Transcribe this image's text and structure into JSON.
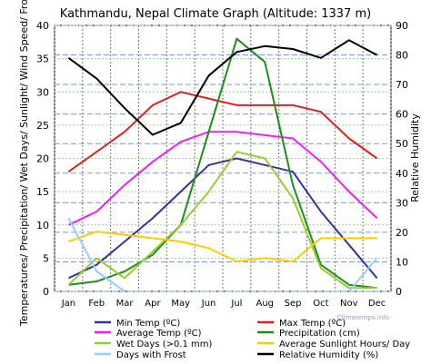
{
  "chart_data": {
    "type": "line",
    "title": "Kathmandu, Nepal Climate Graph (Altitude: 1337 m)",
    "ylabel_left": "Temperatures/ Precipitation/ Wet Days/ Sunlight/ Wind Speed/ Frost",
    "ylabel_right": "Relative Humidity",
    "watermark": "Climatemps.info",
    "categories": [
      "Jan",
      "Feb",
      "Mar",
      "Apr",
      "May",
      "Jun",
      "Jul",
      "Aug",
      "Sep",
      "Oct",
      "Nov",
      "Dec"
    ],
    "ylim_left": [
      0,
      40
    ],
    "yticks_left": [
      "0",
      "5",
      "10",
      "15",
      "20",
      "25",
      "30",
      "35",
      "40"
    ],
    "ylim_right": [
      0,
      90
    ],
    "yticks_right": [
      "0",
      "10",
      "20",
      "30",
      "40",
      "50",
      "60",
      "70",
      "80",
      "90"
    ],
    "grid": true,
    "legend_position": "bottom",
    "series": [
      {
        "name": "Min Temp (ºC)",
        "axis": "left",
        "color": "#333399",
        "values": [
          2,
          4,
          7.5,
          11,
          15,
          19,
          20,
          19,
          18,
          12,
          7,
          2
        ]
      },
      {
        "name": "Max Temp (ºC)",
        "axis": "left",
        "color": "#e02020",
        "values": [
          18,
          21,
          24,
          28,
          30,
          29,
          28,
          28,
          28,
          27,
          23,
          20
        ]
      },
      {
        "name": "Average Temp (ºC)",
        "axis": "left",
        "color": "#ee22ee",
        "values": [
          10,
          12,
          16,
          19.5,
          22.5,
          24,
          24,
          23.5,
          23,
          19.5,
          15,
          11
        ]
      },
      {
        "name": "Precipitation (cm)",
        "axis": "left",
        "color": "#1a8f1a",
        "values": [
          1,
          1.5,
          3,
          5.5,
          10,
          24,
          38,
          34.5,
          16,
          4,
          1,
          0.5
        ]
      },
      {
        "name": "Wet Days (>0.1 mm)",
        "axis": "left",
        "color": "#99cc33",
        "values": [
          1,
          5,
          2,
          6,
          10,
          15,
          21,
          20,
          14,
          3.5,
          0.5,
          0.5
        ]
      },
      {
        "name": "Average Sunlight Hours/ Day",
        "axis": "left",
        "color": "#ffcc00",
        "values": [
          7.5,
          9,
          8.5,
          8,
          7.5,
          6.5,
          4.5,
          5,
          4.5,
          8,
          8,
          8
        ]
      },
      {
        "name": "Days with Frost",
        "axis": "left",
        "color": "#99ccff",
        "values": [
          11,
          3,
          0,
          null,
          null,
          null,
          null,
          null,
          null,
          null,
          0,
          5
        ]
      },
      {
        "name": "Relative Humidity (%)",
        "axis": "right",
        "color": "#000000",
        "values": [
          79,
          72,
          62,
          53,
          57,
          73,
          81,
          83,
          82,
          79,
          85,
          80
        ]
      }
    ]
  }
}
